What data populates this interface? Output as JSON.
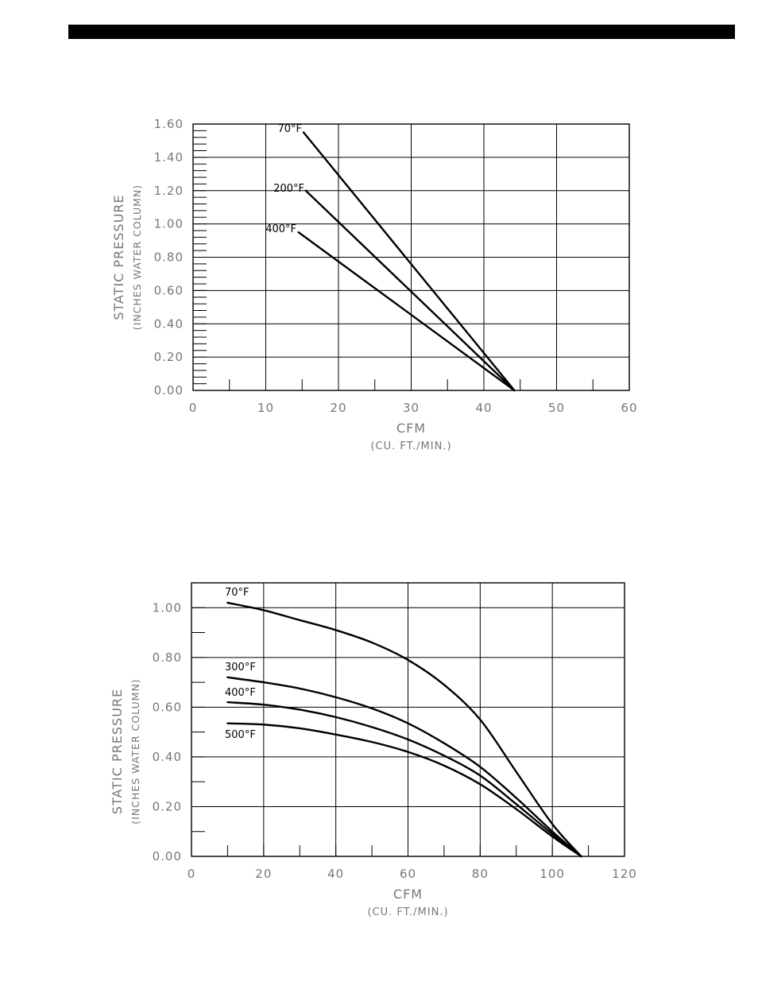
{
  "chart_data": [
    {
      "type": "line",
      "ylabel": "STATIC PRESSURE",
      "ylabel_sub": "(INCHES WATER COLUMN)",
      "xlabel": "CFM",
      "xlabel_sub": "(CU. FT./MIN.)",
      "xlim": [
        0,
        60
      ],
      "ylim": [
        0,
        1.6
      ],
      "x_ticks": [
        "0",
        "10",
        "20",
        "30",
        "40",
        "50",
        "60"
      ],
      "y_ticks": [
        "0.00",
        "0.20",
        "0.40",
        "0.60",
        "0.80",
        "1.00",
        "1.20",
        "1.40",
        "1.60"
      ],
      "grid": true,
      "series": [
        {
          "name": "70°F",
          "x": [
            15.2,
            44.2
          ],
          "y": [
            1.55,
            0.0
          ]
        },
        {
          "name": "200°F",
          "x": [
            15.5,
            44.2
          ],
          "y": [
            1.2,
            0.0
          ]
        },
        {
          "name": "400°F",
          "x": [
            14.5,
            44.2
          ],
          "y": [
            0.95,
            0.0
          ]
        }
      ]
    },
    {
      "type": "line",
      "ylabel": "STATIC PRESSURE",
      "ylabel_sub": "(INCHES WATER COLUMN)",
      "xlabel": "CFM",
      "xlabel_sub": "(CU. FT./MIN.)",
      "xlim": [
        0,
        120
      ],
      "ylim": [
        0,
        1.1
      ],
      "x_ticks": [
        "0",
        "20",
        "40",
        "60",
        "80",
        "100",
        "120"
      ],
      "y_ticks": [
        "0.00",
        "0.20",
        "0.40",
        "0.60",
        "0.80",
        "1.00"
      ],
      "grid": true,
      "series": [
        {
          "name": "70°F",
          "x": [
            10,
            20,
            30,
            40,
            50,
            60,
            70,
            80,
            90,
            100,
            108
          ],
          "y": [
            1.02,
            0.99,
            0.95,
            0.91,
            0.86,
            0.79,
            0.69,
            0.55,
            0.34,
            0.13,
            0.0
          ]
        },
        {
          "name": "300°F",
          "x": [
            10,
            20,
            30,
            40,
            50,
            60,
            70,
            80,
            90,
            100,
            108
          ],
          "y": [
            0.72,
            0.7,
            0.675,
            0.64,
            0.595,
            0.535,
            0.455,
            0.36,
            0.235,
            0.1,
            0.0
          ]
        },
        {
          "name": "400°F",
          "x": [
            10,
            20,
            30,
            40,
            50,
            60,
            70,
            80,
            90,
            100,
            108
          ],
          "y": [
            0.62,
            0.61,
            0.59,
            0.56,
            0.52,
            0.47,
            0.405,
            0.325,
            0.21,
            0.09,
            0.0
          ]
        },
        {
          "name": "500°F",
          "x": [
            10,
            20,
            30,
            40,
            50,
            60,
            70,
            80,
            90,
            100,
            108
          ],
          "y": [
            0.535,
            0.53,
            0.515,
            0.49,
            0.46,
            0.42,
            0.365,
            0.29,
            0.19,
            0.08,
            0.0
          ]
        }
      ]
    }
  ]
}
